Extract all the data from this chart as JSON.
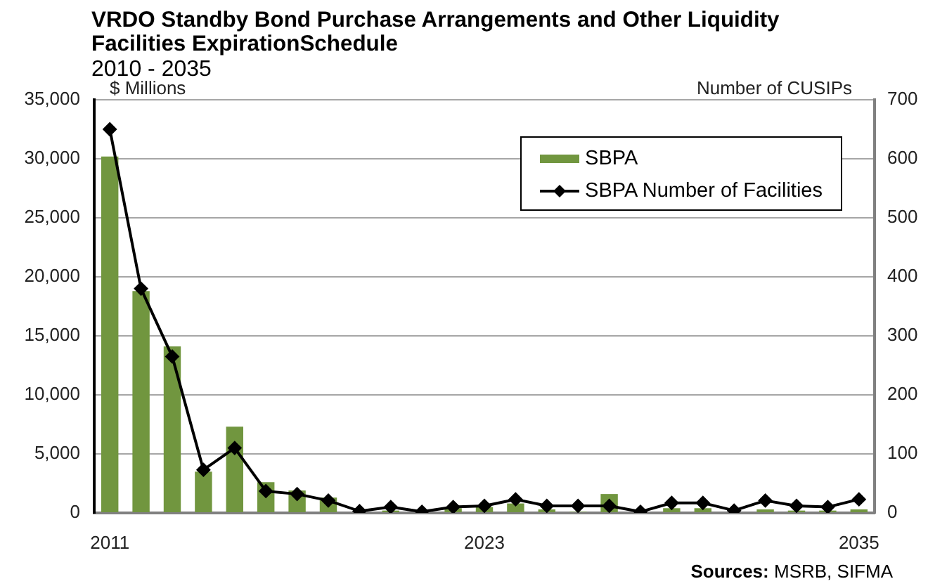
{
  "chart_data": {
    "type": "bar",
    "title": "VRDO Standby Bond Purchase Arrangements and Other Liquidity Facilities ExpirationSchedule",
    "subtitle": "2010 - 2035",
    "ylabel": "$ Millions",
    "y2label": "Number of CUSIPs",
    "annotations": [
      "Sources: MSRB, SIFMA"
    ],
    "categories": [
      "2011",
      null,
      null,
      null,
      null,
      null,
      null,
      null,
      null,
      null,
      null,
      null,
      "2023",
      null,
      null,
      null,
      null,
      null,
      null,
      null,
      null,
      null,
      null,
      null,
      "2035"
    ],
    "series": [
      {
        "name": "SBPA",
        "color": "#71963f",
        "values": [
          30200,
          18800,
          14100,
          3500,
          7300,
          2600,
          1900,
          1300,
          0,
          200,
          0,
          400,
          500,
          800,
          300,
          100,
          1600,
          0,
          400,
          400,
          0,
          300,
          200,
          200,
          300
        ]
      },
      {
        "name": "SBPA Number of Facilities",
        "type": "line",
        "axis": "y2",
        "color": "#000000",
        "values": [
          650,
          380,
          265,
          73,
          110,
          37,
          32,
          21,
          3,
          10,
          2,
          10,
          12,
          23,
          12,
          12,
          12,
          2,
          17,
          17,
          4,
          21,
          12,
          10,
          23
        ]
      }
    ],
    "ylim": [
      0,
      35000
    ],
    "yticks": [
      {
        "value": 0,
        "label": "0"
      },
      {
        "value": 5000,
        "label": "5,000"
      },
      {
        "value": 10000,
        "label": "10,000"
      },
      {
        "value": 15000,
        "label": "15,000"
      },
      {
        "value": 20000,
        "label": "20,000"
      },
      {
        "value": 25000,
        "label": "25,000"
      },
      {
        "value": 30000,
        "label": "30,000"
      },
      {
        "value": 35000,
        "label": "35,000"
      }
    ],
    "y2lim": [
      0,
      700
    ],
    "y2ticks": [
      0,
      100,
      200,
      300,
      400,
      500,
      600,
      700
    ],
    "grid": "y",
    "legend": "top right",
    "marker": "diamond"
  }
}
